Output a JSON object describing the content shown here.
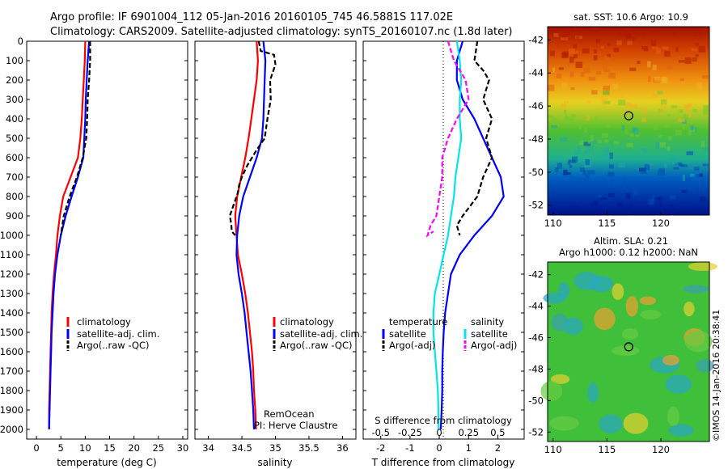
{
  "header": {
    "line1": "Argo profile: IF 6901004_112 05-Jan-2016 20160105_745 46.5881S 117.02E",
    "line2": "Climatology: CARS2009. Satellite-adjusted climatology: synTS_20160107.nc (1.8d later)"
  },
  "colors": {
    "climatology": "#ff0000",
    "satellite": "#0000ff",
    "argo": "#000000",
    "sal_satellite": "#00e5ee",
    "sal_argo": "#ff00ff"
  },
  "chart_data": [
    {
      "id": "temperature",
      "type": "line",
      "xlabel": "temperature (deg C)",
      "xlim": [
        -2,
        31
      ],
      "ylim": [
        2050,
        0
      ],
      "xticks": [
        0,
        5,
        10,
        15,
        20,
        25,
        30
      ],
      "yticks": [
        0,
        100,
        200,
        300,
        400,
        500,
        600,
        700,
        800,
        900,
        1000,
        1100,
        1200,
        1300,
        1400,
        1500,
        1600,
        1700,
        1800,
        1900,
        2000
      ],
      "legend": [
        "climatology",
        "satellite-adj. clim.",
        "Argo(..raw -QC)"
      ],
      "series": [
        {
          "name": "climatology",
          "style": "solid",
          "color": "#ff0000",
          "x": [
            10.0,
            9.9,
            9.7,
            9.5,
            9.3,
            9.0,
            8.5,
            7.0,
            5.5,
            4.8,
            4.3,
            4.0,
            3.6,
            3.3,
            3.1,
            3.0,
            2.9,
            2.8,
            2.7,
            2.6,
            2.6
          ],
          "y": [
            0,
            100,
            200,
            300,
            400,
            500,
            600,
            700,
            800,
            900,
            1000,
            1100,
            1200,
            1300,
            1400,
            1500,
            1600,
            1700,
            1800,
            1900,
            2000
          ]
        },
        {
          "name": "satellite-adj. clim.",
          "style": "solid",
          "color": "#0000ff",
          "x": [
            10.8,
            10.5,
            10.3,
            10.1,
            10.0,
            9.8,
            9.6,
            8.5,
            7.2,
            6.0,
            5.0,
            4.3,
            3.8,
            3.5,
            3.3,
            3.1,
            3.0,
            2.9,
            2.8,
            2.7,
            2.6
          ],
          "y": [
            0,
            100,
            200,
            300,
            400,
            500,
            600,
            700,
            800,
            900,
            1000,
            1100,
            1200,
            1300,
            1400,
            1500,
            1600,
            1700,
            1800,
            1900,
            2000
          ]
        },
        {
          "name": "Argo(..raw -QC)",
          "style": "dashed",
          "color": "#000000",
          "x": [
            11.0,
            11.0,
            10.8,
            10.5,
            10.4,
            10.2,
            9.5,
            8.3,
            6.8,
            5.6,
            5.0
          ],
          "y": [
            0,
            100,
            200,
            300,
            400,
            500,
            600,
            700,
            800,
            900,
            1000
          ]
        }
      ]
    },
    {
      "id": "salinity",
      "type": "line",
      "xlabel": "salinity",
      "xlim": [
        33.8,
        36.2
      ],
      "ylim": [
        2050,
        0
      ],
      "xticks": [
        34,
        34.5,
        35,
        35.5,
        36
      ],
      "legend": [
        "climatology",
        "satellite-adj. clim.",
        "Argo(..raw -QC)"
      ],
      "annotation": [
        "RemOcean",
        "PI: Herve Claustre"
      ],
      "series": [
        {
          "name": "climatology",
          "style": "solid",
          "color": "#ff0000",
          "x": [
            34.72,
            34.74,
            34.72,
            34.68,
            34.64,
            34.6,
            34.55,
            34.49,
            34.43,
            34.4,
            34.42,
            34.44,
            34.5,
            34.55,
            34.59,
            34.62,
            34.65,
            34.67,
            34.68,
            34.7,
            34.71
          ],
          "y": [
            0,
            100,
            200,
            300,
            400,
            500,
            600,
            700,
            800,
            900,
            1000,
            1100,
            1200,
            1300,
            1400,
            1500,
            1600,
            1700,
            1800,
            1900,
            2000
          ]
        },
        {
          "name": "satellite-adj. clim.",
          "style": "solid",
          "color": "#0000ff",
          "x": [
            34.82,
            34.85,
            34.84,
            34.83,
            34.82,
            34.8,
            34.72,
            34.62,
            34.52,
            34.46,
            34.43,
            34.42,
            34.45,
            34.5,
            34.54,
            34.57,
            34.6,
            34.63,
            34.65,
            34.67,
            34.68
          ],
          "y": [
            0,
            100,
            200,
            300,
            400,
            500,
            600,
            700,
            800,
            900,
            1000,
            1100,
            1200,
            1300,
            1400,
            1500,
            1600,
            1700,
            1800,
            1900,
            2000
          ]
        },
        {
          "name": "Argo(..raw -QC)",
          "style": "dashed",
          "color": "#000000",
          "x": [
            34.75,
            34.78,
            34.98,
            35.0,
            34.92,
            34.93,
            34.88,
            34.84,
            34.72,
            34.58,
            34.5,
            34.46,
            34.44,
            34.4,
            34.36,
            34.32,
            34.34,
            34.35,
            34.4
          ],
          "y": [
            0,
            50,
            70,
            120,
            200,
            300,
            400,
            500,
            560,
            640,
            700,
            740,
            780,
            820,
            860,
            900,
            940,
            980,
            1000
          ]
        }
      ]
    },
    {
      "id": "differences",
      "type": "line",
      "xlabel": "T difference from climatology",
      "top_axis_label": "S difference from climatology",
      "xlim": [
        -2.6,
        2.9
      ],
      "ylim": [
        2050,
        0
      ],
      "xticks": [
        -2,
        -1,
        0,
        1,
        2
      ],
      "sticks": [
        "-0.5",
        "-0.25",
        "0",
        "0.25",
        "0.5"
      ],
      "legend_headers": [
        "temperature",
        "salinity"
      ],
      "legend": [
        "satellite",
        "Argo(-adj)",
        "satellite",
        "Argo(-adj)"
      ],
      "series": [
        {
          "name": "temperature satellite",
          "style": "solid",
          "color": "#0000ff",
          "x": [
            0.8,
            0.6,
            0.6,
            0.8,
            1.2,
            1.5,
            1.8,
            2.1,
            2.2,
            1.8,
            1.2,
            0.7,
            0.4,
            0.3,
            0.2,
            0.15,
            0.12,
            0.1,
            0.1,
            0.08,
            0.05
          ],
          "y": [
            0,
            100,
            200,
            300,
            400,
            500,
            600,
            700,
            800,
            900,
            1000,
            1100,
            1200,
            1300,
            1400,
            1500,
            1600,
            1700,
            1800,
            1900,
            2000
          ]
        },
        {
          "name": "temperature Argo(-adj)",
          "style": "dashed",
          "color": "#000000",
          "x": [
            1.3,
            1.2,
            1.5,
            1.7,
            1.5,
            1.8,
            1.6,
            1.8,
            1.5,
            1.3,
            0.8,
            0.6,
            0.7
          ],
          "y": [
            0,
            100,
            150,
            200,
            300,
            400,
            500,
            600,
            700,
            800,
            900,
            950,
            1000
          ]
        },
        {
          "name": "salinity satellite",
          "style": "solid",
          "color": "#00e5ee",
          "x": [
            0.6,
            0.7,
            0.75,
            0.7,
            0.7,
            0.75,
            0.65,
            0.55,
            0.5,
            0.4,
            0.3,
            0.15,
            0.0,
            -0.15,
            -0.2,
            -0.2,
            -0.15,
            -0.1,
            -0.05,
            -0.03,
            -0.02
          ],
          "y": [
            0,
            100,
            200,
            300,
            400,
            500,
            600,
            700,
            800,
            900,
            1000,
            1100,
            1200,
            1300,
            1400,
            1500,
            1600,
            1700,
            1800,
            1900,
            2000
          ]
        },
        {
          "name": "salinity Argo(-adj)",
          "style": "dashed",
          "color": "#ff00ff",
          "x": [
            0.3,
            0.5,
            0.9,
            1.0,
            0.6,
            0.3,
            0.1,
            0.1,
            0.0,
            -0.1,
            -0.3,
            -0.4,
            -0.2
          ],
          "y": [
            0,
            100,
            200,
            300,
            400,
            500,
            600,
            700,
            800,
            900,
            950,
            1000,
            980
          ]
        }
      ]
    },
    {
      "id": "sst_map",
      "type": "heatmap",
      "title": "sat. SST: 10.6 Argo: 10.9",
      "xlim": [
        109.5,
        124.5
      ],
      "ylim": [
        -52.6,
        -41.2
      ],
      "xticks": [
        110,
        115,
        120
      ],
      "yticks": [
        -42,
        -44,
        -46,
        -48,
        -50,
        -52
      ],
      "marker": {
        "lon": 117.02,
        "lat": -46.5881
      }
    },
    {
      "id": "sla_map",
      "type": "heatmap",
      "title": "Altim. SLA: 0.21",
      "subtitle": "Argo h1000: 0.12 h2000: NaN",
      "xlim": [
        109.5,
        124.5
      ],
      "ylim": [
        -52.6,
        -41.2
      ],
      "xticks": [
        110,
        115,
        120
      ],
      "yticks": [
        -42,
        -44,
        -46,
        -48,
        -50,
        -52
      ],
      "marker": {
        "lon": 117.02,
        "lat": -46.5881
      }
    }
  ],
  "side_label": "©IMOS 14-Jan-2016 20:38:41"
}
